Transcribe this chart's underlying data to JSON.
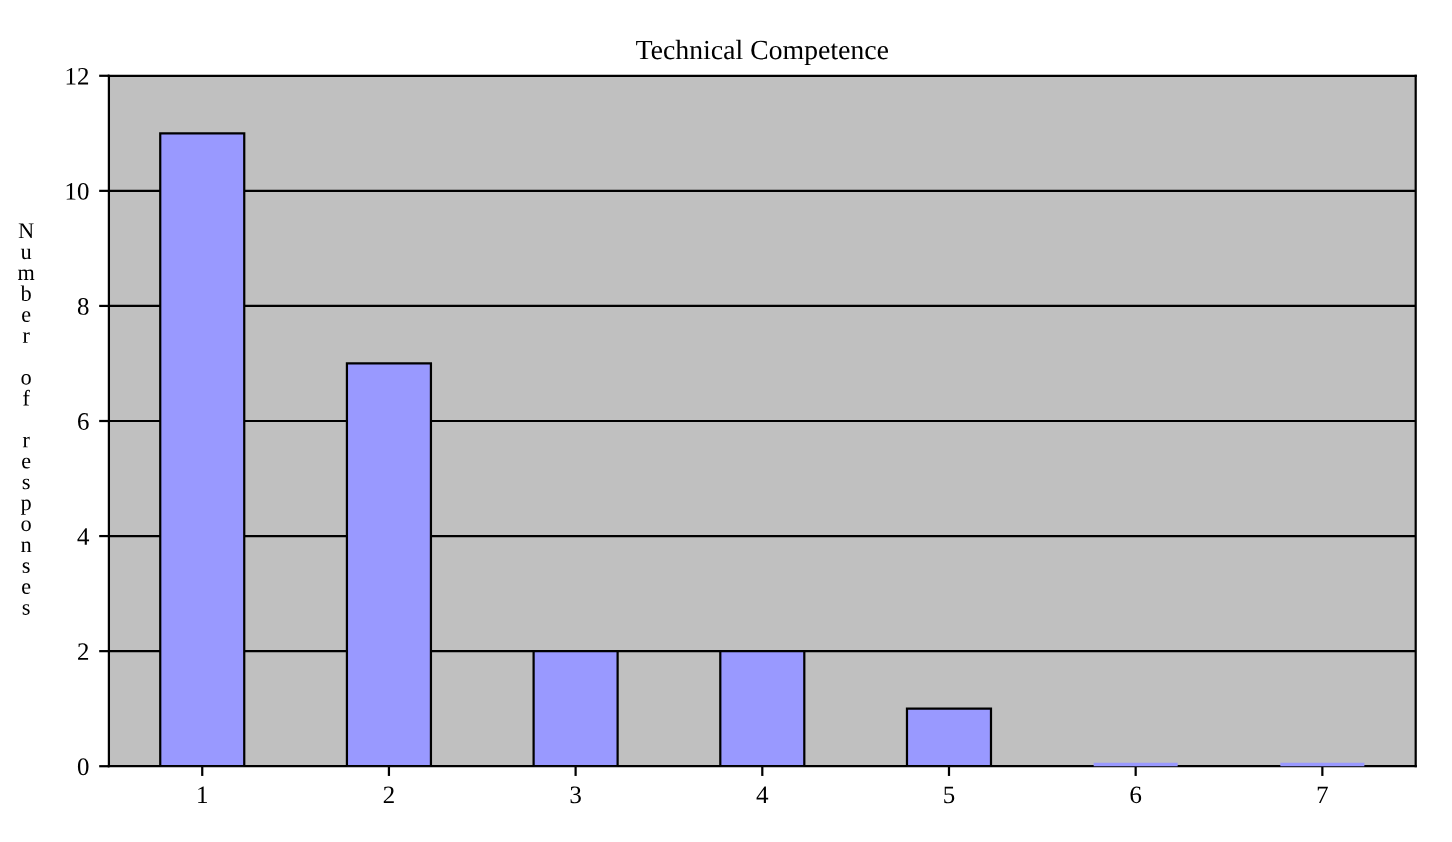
{
  "chart_data": {
    "type": "bar",
    "title": "Technical Competence",
    "ylabel": "Number of responses",
    "categories": [
      "1",
      "2",
      "3",
      "4",
      "5",
      "6",
      "7"
    ],
    "values": [
      11,
      7,
      2,
      2,
      1,
      0,
      0
    ],
    "color": "#9999ff",
    "ylim": [
      0,
      12
    ],
    "yticks": [
      0,
      2,
      4,
      6,
      8,
      10,
      12
    ],
    "grid": "y"
  }
}
